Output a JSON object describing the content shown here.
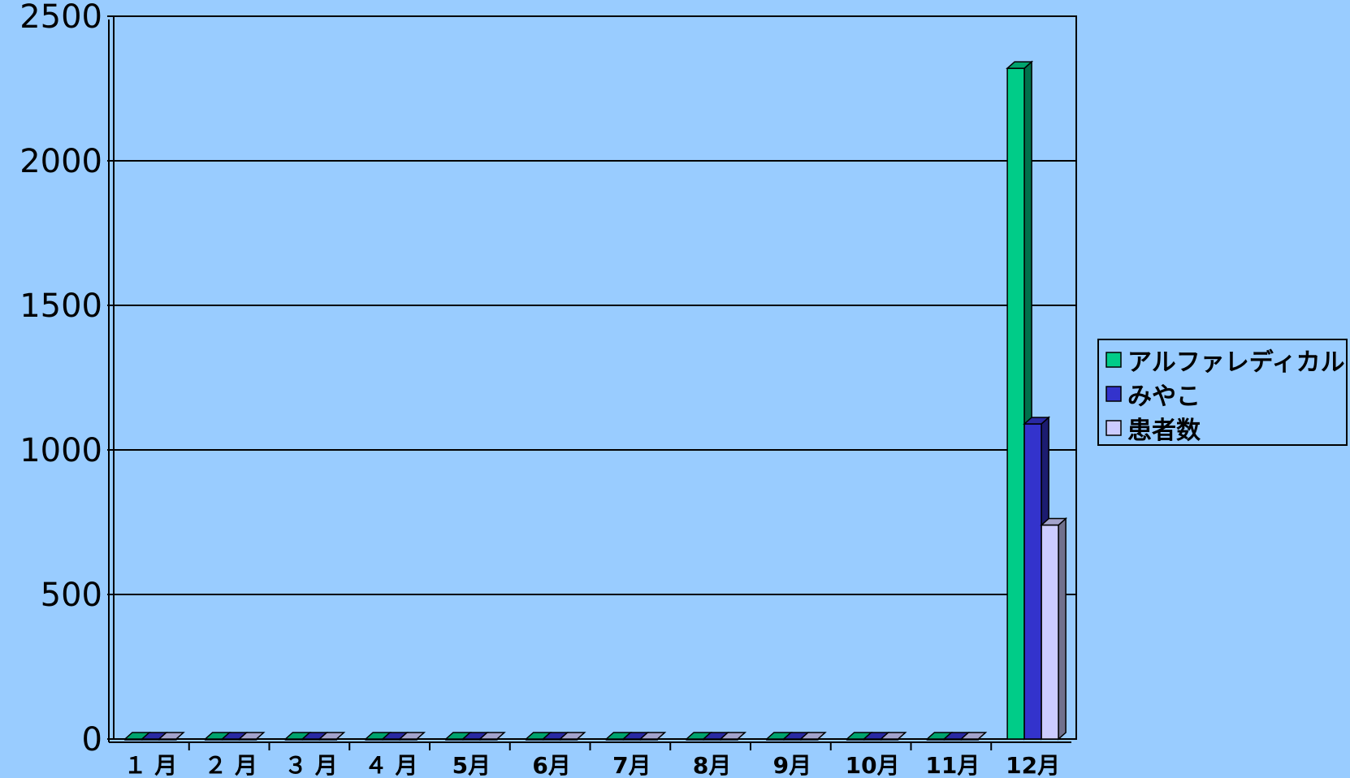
{
  "chart_data": {
    "type": "bar",
    "categories": [
      "１ 月",
      "２ 月",
      "３ 月",
      "４ 月",
      "5月",
      "6月",
      "7月",
      "8月",
      "9月",
      "10月",
      "11月",
      "12月"
    ],
    "series": [
      {
        "name": "アルファレディカル",
        "color": "#00cc88",
        "values": [
          0,
          0,
          0,
          0,
          0,
          0,
          0,
          0,
          0,
          0,
          0,
          2320
        ]
      },
      {
        "name": "みやこ",
        "color": "#3333cc",
        "values": [
          0,
          0,
          0,
          0,
          0,
          0,
          0,
          0,
          0,
          0,
          0,
          1090
        ]
      },
      {
        "name": "患者数",
        "color": "#ccccff",
        "values": [
          0,
          0,
          0,
          0,
          0,
          0,
          0,
          0,
          0,
          0,
          0,
          740
        ]
      }
    ],
    "yticks": [
      "0",
      "500",
      "1000",
      "1500",
      "2000",
      "2500"
    ],
    "ylim": [
      0,
      2500
    ],
    "grid": true,
    "legend_position": "right"
  }
}
